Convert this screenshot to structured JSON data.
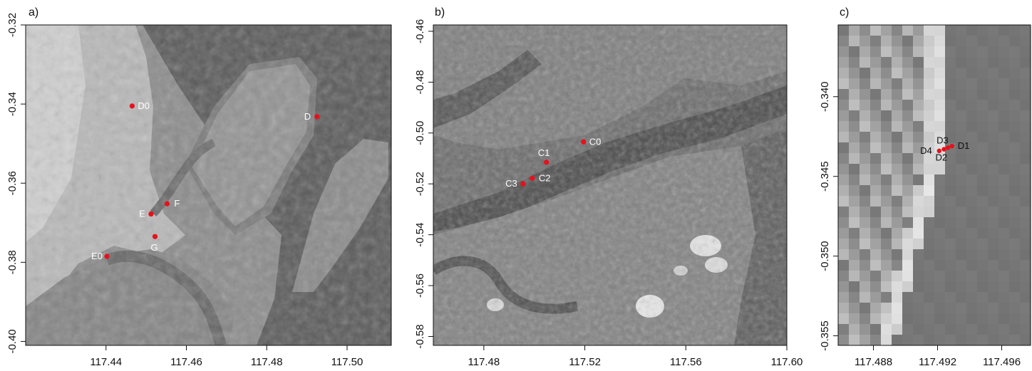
{
  "panels": [
    {
      "label": "a)",
      "x_ticks": [
        {
          "value": 117.44,
          "label": "117.44"
        },
        {
          "value": 117.46,
          "label": "117.46"
        },
        {
          "value": 117.48,
          "label": "117.48"
        },
        {
          "value": 117.5,
          "label": "117.50"
        }
      ],
      "y_ticks": [
        {
          "value": -0.32,
          "label": "-0.32"
        },
        {
          "value": -0.34,
          "label": "-0.34"
        },
        {
          "value": -0.36,
          "label": "-0.36"
        },
        {
          "value": -0.38,
          "label": "-0.38"
        },
        {
          "value": -0.4,
          "label": "-0.40"
        }
      ],
      "sites": [
        {
          "name": "D0",
          "lon": 117.4465,
          "lat": -0.3405
        },
        {
          "name": "D",
          "lon": 117.4925,
          "lat": -0.3432
        },
        {
          "name": "F",
          "lon": 117.4552,
          "lat": -0.3652
        },
        {
          "name": "E",
          "lon": 117.4512,
          "lat": -0.3678
        },
        {
          "name": "G",
          "lon": 117.4522,
          "lat": -0.3735
        },
        {
          "name": "E0",
          "lon": 117.4402,
          "lat": -0.3785
        }
      ]
    },
    {
      "label": "b)",
      "x_ticks": [
        {
          "value": 117.48,
          "label": "117.48"
        },
        {
          "value": 117.52,
          "label": "117.52"
        },
        {
          "value": 117.56,
          "label": "117.56"
        },
        {
          "value": 117.6,
          "label": "117.60"
        }
      ],
      "y_ticks": [
        {
          "value": -0.46,
          "label": "-0.46"
        },
        {
          "value": -0.48,
          "label": "-0.48"
        },
        {
          "value": -0.5,
          "label": "-0.50"
        },
        {
          "value": -0.52,
          "label": "-0.52"
        },
        {
          "value": -0.54,
          "label": "-0.54"
        },
        {
          "value": -0.56,
          "label": "-0.56"
        },
        {
          "value": -0.58,
          "label": "-0.58"
        }
      ],
      "sites": [
        {
          "name": "C0",
          "lon": 117.5195,
          "lat": -0.5035
        },
        {
          "name": "C1",
          "lon": 117.5048,
          "lat": -0.5115
        },
        {
          "name": "C2",
          "lon": 117.4992,
          "lat": -0.5178
        },
        {
          "name": "C3",
          "lon": 117.4955,
          "lat": -0.52
        }
      ]
    },
    {
      "label": "c)",
      "x_ticks": [
        {
          "value": 117.488,
          "label": "117.488"
        },
        {
          "value": 117.492,
          "label": "117.492"
        },
        {
          "value": 117.496,
          "label": "117.496"
        }
      ],
      "y_ticks": [
        {
          "value": -0.34,
          "label": "-0.340"
        },
        {
          "value": -0.345,
          "label": "-0.345"
        },
        {
          "value": -0.35,
          "label": "-0.350"
        },
        {
          "value": -0.355,
          "label": "-0.355"
        }
      ],
      "sites": [
        {
          "name": "D1",
          "lon": 117.4929,
          "lat": -0.3431
        },
        {
          "name": "D3",
          "lon": 117.49265,
          "lat": -0.3432
        },
        {
          "name": "D2",
          "lon": 117.4924,
          "lat": -0.3433
        },
        {
          "name": "D4",
          "lon": 117.4921,
          "lat": -0.3434
        }
      ]
    }
  ]
}
